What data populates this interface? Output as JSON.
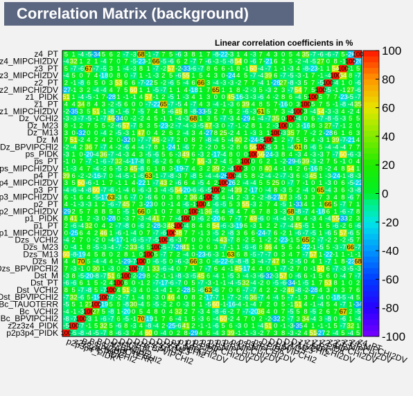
{
  "title": "Correlation Matrix (background)",
  "chart_data": {
    "type": "heatmap",
    "title": "Correlation Matrix (background)",
    "subtitle": "Linear correlation coefficients in %",
    "zlim": [
      -100,
      100
    ],
    "colorbar_ticks": [
      100,
      80,
      60,
      40,
      20,
      0,
      -20,
      -40,
      -60,
      -80,
      -100
    ],
    "variables": [
      "p2p3p4_PIDK",
      "z2z3z4_PIDK",
      "Bc_BPVIPCHI2",
      "Bc_VCHI2",
      "Bc_TAUOTERR",
      "Dst_BPVIPCHI2",
      "Dst_VCHI2",
      "Dst_PT",
      "Dst_M",
      "Dzs_BPVIPCHI2",
      "Dzs_M",
      "Dzs_M13",
      "Dzs_M23",
      "Dzs_VCHI2",
      "p1_MIPCHI2DV",
      "p1_PT",
      "p1_PIDK",
      "p2_MIPCHI2DV",
      "p2_PT",
      "p3_MIPCHI2DV",
      "p3_PT",
      "p4_MIPCHI2DV",
      "p4_PT",
      "ps_MIPCHI2DV",
      "ps_PT",
      "ps_PIDK",
      "Dz_BPVIPCHI2",
      "Dz_M",
      "Dz_M13",
      "Dz_M23",
      "Dz_VCHI2",
      "z1_MIPCHI2DV",
      "z1_PT",
      "z1_PIDK",
      "z2_MIPCHI2DV",
      "z2_PT",
      "z3_MIPCHI2DV",
      "z3_PT",
      "z4_MIPCHI2DV",
      "z4_PT"
    ],
    "xlabel": "",
    "ylabel": "",
    "grid": true
  }
}
